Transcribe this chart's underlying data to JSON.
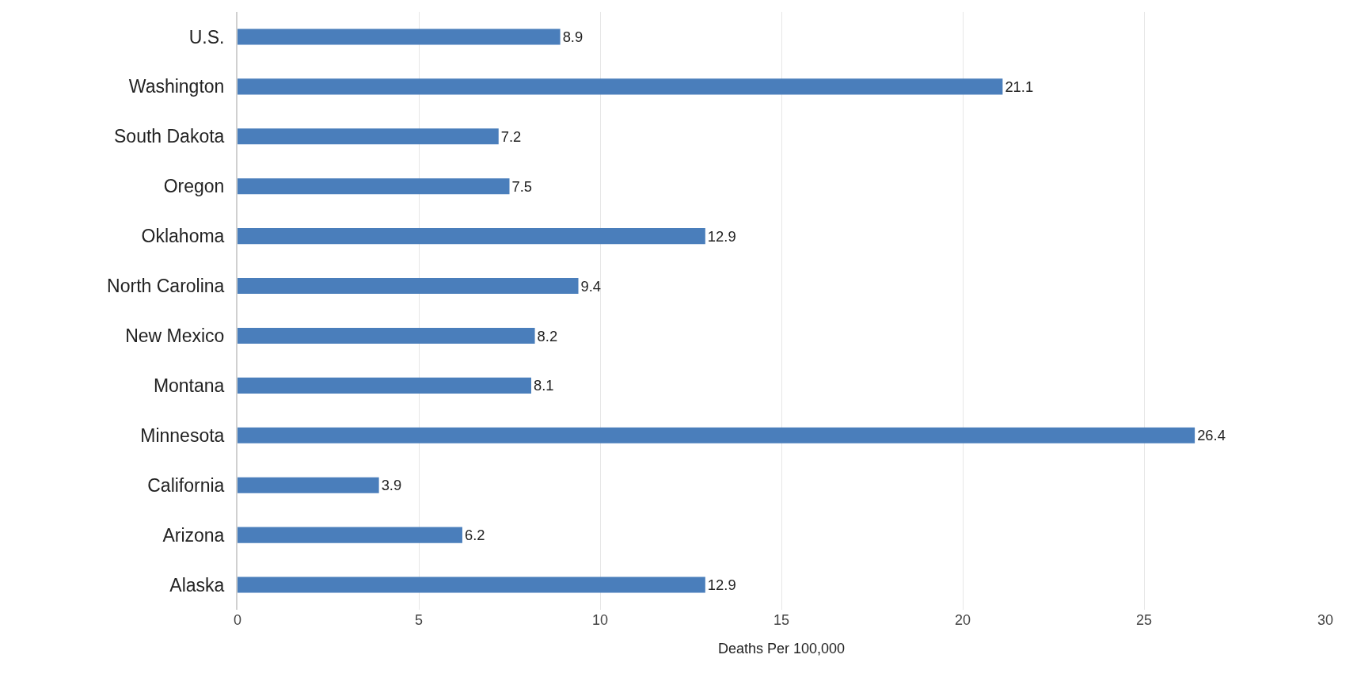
{
  "chart_data": {
    "type": "bar",
    "orientation": "horizontal",
    "xlabel": "Deaths Per 100,000",
    "categories": [
      "U.S.",
      "Washington",
      "South Dakota",
      "Oregon",
      "Oklahoma",
      "North Carolina",
      "New Mexico",
      "Montana",
      "Minnesota",
      "California",
      "Arizona",
      "Alaska"
    ],
    "values": [
      8.9,
      21.1,
      7.2,
      7.5,
      12.9,
      9.4,
      8.2,
      8.1,
      26.4,
      3.9,
      6.2,
      12.9
    ],
    "color": "#4a7ebb",
    "xlim": [
      0,
      30
    ],
    "xticks": [
      0,
      5,
      10,
      15,
      20,
      25,
      30
    ],
    "grid": "x",
    "data_labels": true
  }
}
